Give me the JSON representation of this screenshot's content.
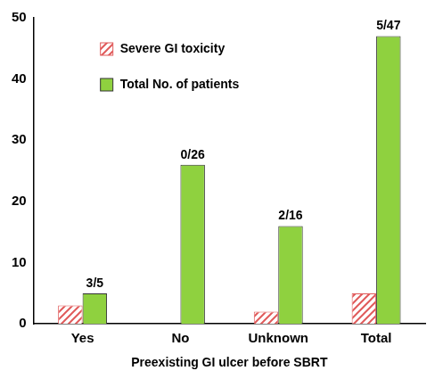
{
  "chart_data": {
    "type": "bar",
    "x_label": "Preexisting GI ulcer before SBRT",
    "categories": [
      "Yes",
      "No",
      "Unknown",
      "Total"
    ],
    "series": [
      {
        "name": "Severe GI toxicity",
        "color": "#e05a5a",
        "values": [
          3,
          0,
          2,
          5
        ]
      },
      {
        "name": "Total No. of patients",
        "color": "#8fd13f",
        "values": [
          5,
          26,
          16,
          47
        ]
      }
    ],
    "annotations": [
      {
        "category": "Yes",
        "series": "Total No. of patients",
        "y": 5,
        "text": "3/5"
      },
      {
        "category": "No",
        "series": "Total No. of patients",
        "y": 26,
        "text": "0/26"
      },
      {
        "category": "Unknown",
        "series": "Total No. of patients",
        "y": 16,
        "text": "2/16"
      },
      {
        "category": "Total",
        "series": "Total No. of patients",
        "y": 47,
        "text": "5/47"
      }
    ],
    "ylim": [
      0,
      50
    ],
    "yticks": [
      0,
      10,
      20,
      30,
      40,
      50
    ],
    "grid": false,
    "legend": "upper left"
  }
}
